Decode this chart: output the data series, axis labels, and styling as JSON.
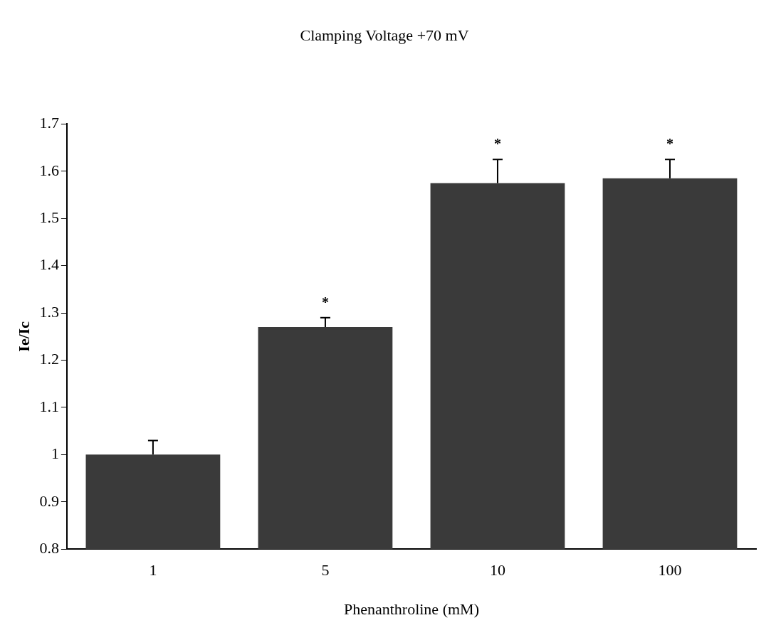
{
  "chart_data": {
    "type": "bar",
    "title": "Clamping Voltage +70 mV",
    "xlabel": "Phenanthroline (mM)",
    "ylabel": "Ie/Ic",
    "categories": [
      "1",
      "5",
      "10",
      "100"
    ],
    "values": [
      1.0,
      1.27,
      1.575,
      1.585
    ],
    "errors": [
      [
        1.0,
        1.03
      ],
      [
        1.27,
        1.29
      ],
      [
        1.575,
        1.625
      ],
      [
        1.585,
        1.625
      ]
    ],
    "color": "#3a3a3a",
    "ylim": [
      0.8,
      1.7
    ],
    "yticks": [
      0.8,
      0.9,
      1,
      1.1,
      1.2,
      1.3,
      1.4,
      1.5,
      1.6,
      1.7
    ],
    "annotations": [
      {
        "text": "*",
        "x": "5",
        "y": 1.29
      },
      {
        "text": "*",
        "x": "10",
        "y": 1.625
      },
      {
        "text": "*",
        "x": "100",
        "y": 1.625
      }
    ]
  }
}
